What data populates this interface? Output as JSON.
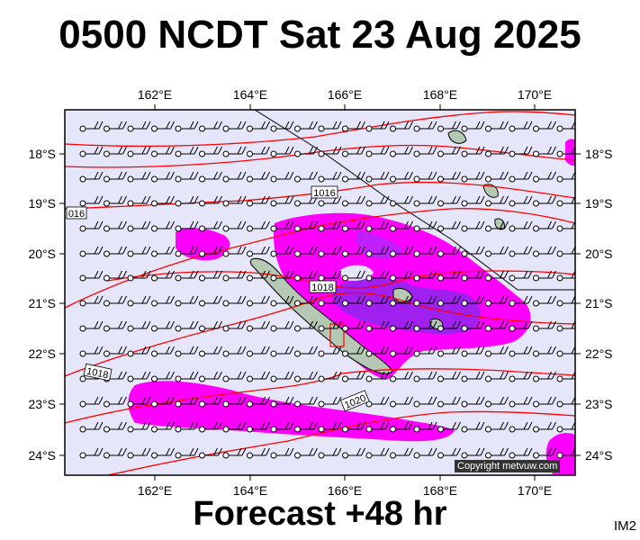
{
  "title": "0500 NCDT Sat 23 Aug 2025",
  "footer": "Forecast +48 hr",
  "image_code": "IM2",
  "copyright": "Copyright metvuw.com",
  "longitude_labels": [
    "162°E",
    "164°E",
    "166°E",
    "168°E",
    "170°E"
  ],
  "latitude_labels": [
    "18°S",
    "19°S",
    "20°S",
    "21°S",
    "22°S",
    "23°S",
    "24°S"
  ],
  "isobar_labels": [
    "1016",
    "016",
    "1018",
    "1018",
    "1020"
  ],
  "colors": {
    "ocean": "#e6e6fa",
    "rain_light": "#ff00ff",
    "rain_heavy": "#8c00ff",
    "isobar": "#ff0000",
    "land": "#b4c8b4"
  }
}
